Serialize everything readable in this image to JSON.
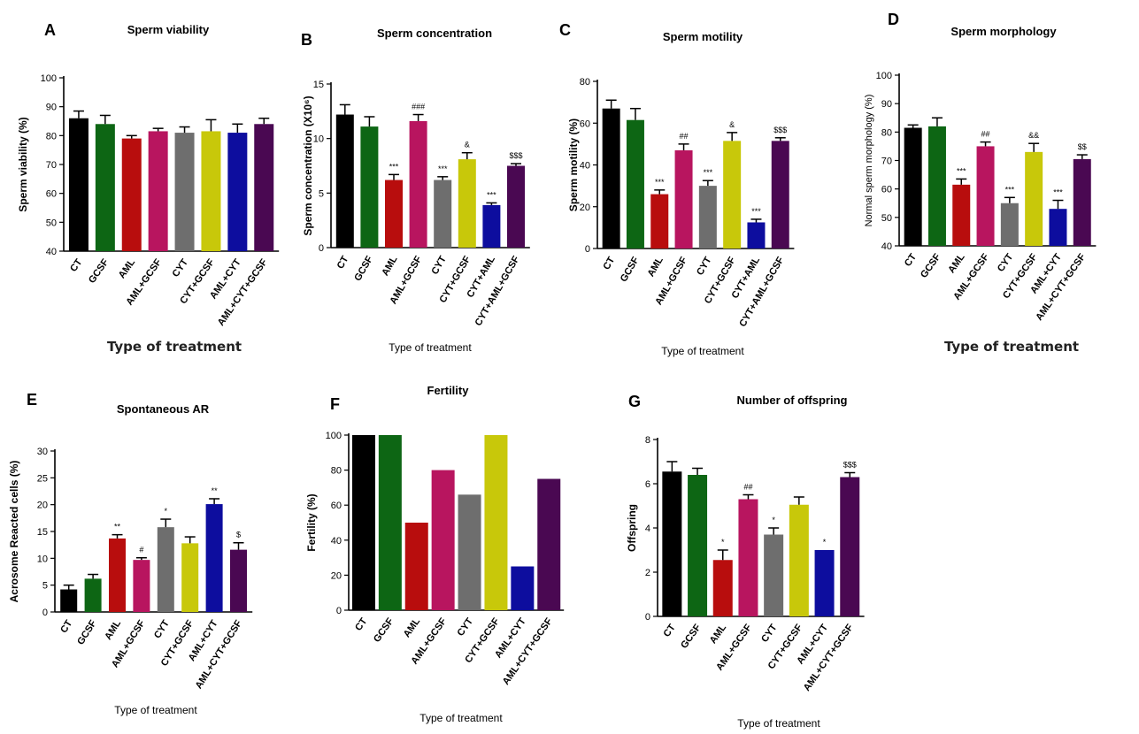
{
  "colors": {
    "CT": "#000000",
    "GCSF": "#0d6614",
    "AML": "#b80d0d",
    "AML+GCSF": "#b8155f",
    "CYT": "#6e6e6e",
    "CYT+GCSF": "#c8c80a",
    "AML+CYT": "#0d0d9e",
    "AML+CYT+GCSF": "#4a0852"
  },
  "chart_data": [
    {
      "letter": "A",
      "type": "bar",
      "title": "Sperm viability",
      "ylabel": "Sperm viability (%)",
      "xlabel": "Type of treatment",
      "ylim": [
        40,
        100
      ],
      "yticks": [
        40,
        50,
        60,
        70,
        80,
        90,
        100
      ],
      "categories": [
        "CT",
        "GCSF",
        "AML",
        "AML+GCSF",
        "CYT",
        "CYT+GCSF",
        "AML+CYT",
        "AML+CYT+GCSF"
      ],
      "values": [
        86,
        84,
        79,
        81.5,
        81,
        81.5,
        81,
        84
      ],
      "errors": [
        2.5,
        3,
        1,
        1,
        2,
        4,
        3,
        2
      ],
      "annotations": [
        "",
        "",
        "",
        "",
        "",
        "",
        "",
        ""
      ]
    },
    {
      "letter": "B",
      "type": "bar",
      "title": "Sperm concentration",
      "ylabel": "Sperm concentration (X10⁶)",
      "xlabel": "Type of treatment",
      "ylim": [
        0,
        15
      ],
      "yticks": [
        0,
        5,
        10,
        15
      ],
      "categories": [
        "CT",
        "GCSF",
        "AML",
        "AML+GCSF",
        "CYT",
        "CYT+GCSF",
        "CYT+AML",
        "CYT+AML+GCSF"
      ],
      "values": [
        12.2,
        11.1,
        6.2,
        11.6,
        6.2,
        8.1,
        3.9,
        7.5
      ],
      "errors": [
        0.9,
        0.9,
        0.5,
        0.6,
        0.3,
        0.6,
        0.2,
        0.2
      ],
      "annotations": [
        "",
        "",
        "***",
        "###",
        "***",
        "&",
        "***",
        "$$$"
      ]
    },
    {
      "letter": "C",
      "type": "bar",
      "title": "Sperm motility",
      "ylabel": "Sperm motility (%)",
      "xlabel": "Type of treatment",
      "ylim": [
        0,
        80
      ],
      "yticks": [
        0,
        20,
        40,
        60,
        80
      ],
      "categories": [
        "CT",
        "GCSF",
        "AML",
        "AML+GCSF",
        "CYT",
        "CYT+GCSF",
        "CYT+AML",
        "CYT+AML+GCSF"
      ],
      "values": [
        67,
        61.5,
        26,
        47,
        30,
        51.5,
        12.5,
        51.5
      ],
      "errors": [
        4,
        5.5,
        2,
        3,
        2.5,
        4,
        1.5,
        1.5
      ],
      "annotations": [
        "",
        "",
        "***",
        "##",
        "***",
        "&",
        "***",
        "$$$"
      ]
    },
    {
      "letter": "D",
      "type": "bar",
      "title": "Sperm morphology",
      "ylabel": "Normal sperm morphology (%)",
      "xlabel": "Type of treatment",
      "ylim": [
        40,
        100
      ],
      "yticks": [
        40,
        50,
        60,
        70,
        80,
        90,
        100
      ],
      "categories": [
        "CT",
        "GCSF",
        "AML",
        "AML+GCSF",
        "CYT",
        "CYT+GCSF",
        "AML+CYT",
        "AML+CYT+GCSF"
      ],
      "values": [
        81.5,
        82,
        61.5,
        75,
        55,
        73,
        53,
        70.5
      ],
      "errors": [
        1,
        3,
        2,
        1.5,
        2,
        3,
        3,
        1.5
      ],
      "annotations": [
        "",
        "",
        "***",
        "##",
        "***",
        "&&",
        "***",
        "$$"
      ]
    },
    {
      "letter": "E",
      "type": "bar",
      "title": "Spontaneous AR",
      "ylabel": "Acrosome Reacted cells (%)",
      "xlabel": "Type of treatment",
      "ylim": [
        0,
        30
      ],
      "yticks": [
        0,
        5,
        10,
        15,
        20,
        25,
        30
      ],
      "categories": [
        "CT",
        "GCSF",
        "AML",
        "AML+GCSF",
        "CYT",
        "CYT+GCSF",
        "AML+CYT",
        "AML+CYT+GCSF"
      ],
      "values": [
        4.2,
        6.2,
        13.7,
        9.7,
        15.8,
        12.8,
        20.1,
        11.6
      ],
      "errors": [
        0.8,
        0.8,
        0.7,
        0.4,
        1.5,
        1.2,
        1,
        1.3
      ],
      "annotations": [
        "",
        "",
        "**",
        "#",
        "*",
        "",
        "**",
        "$"
      ]
    },
    {
      "letter": "F",
      "type": "bar",
      "title": "Fertility",
      "ylabel": "Fertility (%)",
      "xlabel": "Type of treatment",
      "ylim": [
        0,
        100
      ],
      "yticks": [
        0,
        20,
        40,
        60,
        80,
        100
      ],
      "categories": [
        "CT",
        "GCSF",
        "AML",
        "AML+GCSF",
        "CYT",
        "CYT+GCSF",
        "AML+CYT",
        "AML+CYT+GCSF"
      ],
      "values": [
        100,
        100,
        50,
        80,
        66,
        100,
        25,
        75
      ],
      "errors": [
        0,
        0,
        0,
        0,
        0,
        0,
        0,
        0
      ],
      "annotations": [
        "",
        "",
        "",
        "",
        "",
        "",
        "",
        ""
      ]
    },
    {
      "letter": "G",
      "type": "bar",
      "title": "Number of offspring",
      "ylabel": "Offspring",
      "xlabel": "Type of treatment",
      "ylim": [
        0,
        8
      ],
      "yticks": [
        0,
        2,
        4,
        6,
        8
      ],
      "categories": [
        "CT",
        "GCSF",
        "AML",
        "AML+GCSF",
        "CYT",
        "CYT+GCSF",
        "AML+CYT",
        "AML+CYT+GCSF"
      ],
      "values": [
        6.55,
        6.4,
        2.55,
        5.3,
        3.7,
        5.05,
        3.0,
        6.3
      ],
      "errors": [
        0.45,
        0.3,
        0.45,
        0.2,
        0.3,
        0.35,
        0,
        0.2
      ],
      "annotations": [
        "",
        "",
        "*",
        "##",
        "*",
        "",
        "*",
        "$$$"
      ]
    }
  ]
}
